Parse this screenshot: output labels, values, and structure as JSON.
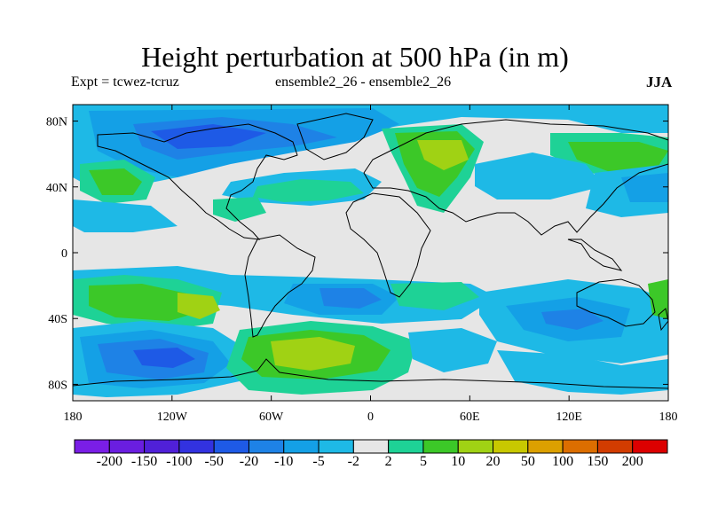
{
  "title": "Height perturbation at 500 hPa (in m)",
  "subtitle_left": "Expt = tcwez-tcruz",
  "subtitle_center": "ensemble2_26 - ensemble2_26",
  "season": "JJA",
  "lat_ticks": [
    {
      "label": "80N",
      "value": 80
    },
    {
      "label": "40N",
      "value": 40
    },
    {
      "label": "0",
      "value": 0
    },
    {
      "label": "40S",
      "value": -40
    },
    {
      "label": "80S",
      "value": -80
    }
  ],
  "lon_ticks": [
    {
      "label": "180",
      "value": -180
    },
    {
      "label": "120W",
      "value": -120
    },
    {
      "label": "60W",
      "value": -60
    },
    {
      "label": "0",
      "value": 0
    },
    {
      "label": "60E",
      "value": 60
    },
    {
      "label": "120E",
      "value": 120
    },
    {
      "label": "180",
      "value": 180
    }
  ],
  "colorbar": {
    "labels": [
      "-200",
      "-150",
      "-100",
      "-50",
      "-20",
      "-10",
      "-5",
      "-2",
      "2",
      "5",
      "10",
      "20",
      "50",
      "100",
      "150",
      "200"
    ],
    "colors": [
      "#7a1ee6",
      "#6a1ee0",
      "#5020d8",
      "#3232e0",
      "#1e5ae6",
      "#1e82e6",
      "#14a0e6",
      "#1eb9e6",
      "#e6e6e6",
      "#1ed296",
      "#3cc828",
      "#a0d214",
      "#c8c800",
      "#dca000",
      "#dc6e00",
      "#d23c00",
      "#dc0000"
    ]
  },
  "colors": {
    "neutral": "#e6e6e6",
    "blue_1": "#1eb9e6",
    "blue_2": "#14a0e6",
    "blue_3": "#1e82e6",
    "blue_4": "#1e5ae6",
    "blue_5": "#3232e0",
    "green_1": "#1ed296",
    "green_2": "#3cc828",
    "yellow_green": "#a0d214"
  }
}
